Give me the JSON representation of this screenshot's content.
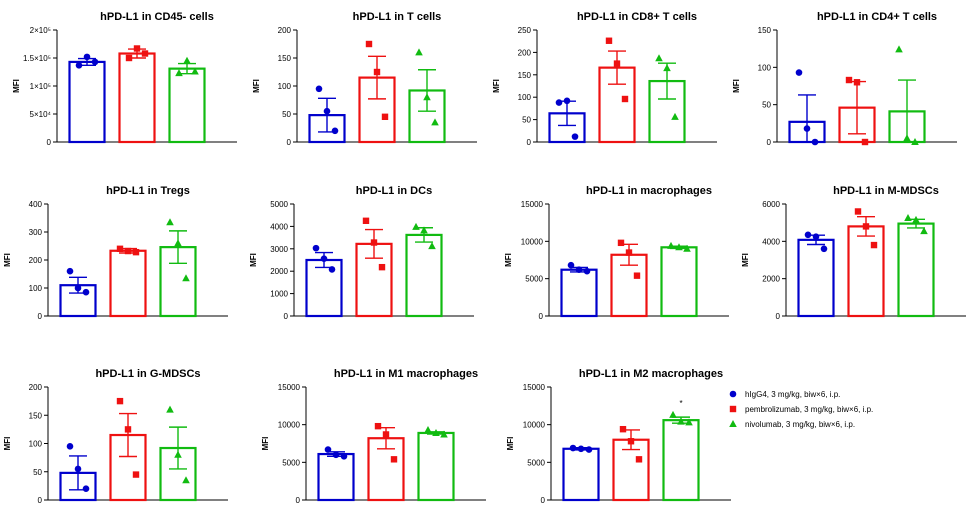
{
  "colors": {
    "hIgG4": "#0000cc",
    "pembrolizumab": "#ee1111",
    "nivolumab": "#11bb11"
  },
  "legend": [
    {
      "key": "hIgG4",
      "label": "hIgG4, 3 mg/kg, biw×6, i.p.",
      "marker": "circle"
    },
    {
      "key": "pembrolizumab",
      "label": "pembrolizumab, 3 mg/kg, biw×6, i.p.",
      "marker": "square"
    },
    {
      "key": "nivolumab",
      "label": "nivolumab, 3 mg/kg, biw×6, i.p.",
      "marker": "triangle"
    }
  ],
  "chart_data": [
    {
      "type": "bar",
      "title": "hPD-L1 in CD45- cells",
      "ylabel": "MFI",
      "ylim": [
        0,
        200000
      ],
      "ticks": [
        0,
        50000,
        100000,
        150000,
        200000
      ],
      "tick_labels": [
        "0",
        "5×10⁴",
        "1×10⁵",
        "1.5×10⁵",
        "2×10⁵"
      ],
      "groups": [
        "hIgG4",
        "pembrolizumab",
        "nivolumab"
      ],
      "means": [
        143000,
        158000,
        131000
      ],
      "sems": [
        6000,
        8000,
        9000
      ],
      "points": [
        [
          137000,
          152000,
          143000
        ],
        [
          150000,
          167000,
          158000
        ],
        [
          123000,
          145000,
          126000
        ]
      ],
      "annotations": [
        "",
        "",
        ""
      ]
    },
    {
      "type": "bar",
      "title": "hPD-L1 in T cells",
      "ylabel": "MFI",
      "ylim": [
        0,
        200
      ],
      "ticks": [
        0,
        50,
        100,
        150,
        200
      ],
      "tick_labels": [
        "0",
        "50",
        "100",
        "150",
        "200"
      ],
      "groups": [
        "hIgG4",
        "pembrolizumab",
        "nivolumab"
      ],
      "means": [
        48,
        115,
        92
      ],
      "sems": [
        30,
        38,
        37
      ],
      "points": [
        [
          95,
          55,
          20
        ],
        [
          175,
          125,
          45
        ],
        [
          160,
          80,
          35
        ]
      ],
      "annotations": [
        "",
        "",
        ""
      ]
    },
    {
      "type": "bar",
      "title": "hPD-L1 in CD8+ T cells",
      "ylabel": "MFI",
      "ylim": [
        0,
        250
      ],
      "ticks": [
        0,
        50,
        100,
        150,
        200,
        250
      ],
      "tick_labels": [
        "0",
        "50",
        "100",
        "150",
        "200",
        "250"
      ],
      "groups": [
        "hIgG4",
        "pembrolizumab",
        "nivolumab"
      ],
      "means": [
        64,
        166,
        136
      ],
      "sems": [
        27,
        37,
        40
      ],
      "points": [
        [
          88,
          92,
          12
        ],
        [
          226,
          175,
          96
        ],
        [
          187,
          165,
          56
        ]
      ],
      "annotations": [
        "",
        "",
        ""
      ]
    },
    {
      "type": "bar",
      "title": "hPD-L1 in CD4+ T cells",
      "ylabel": "MFI",
      "ylim": [
        0,
        150
      ],
      "ticks": [
        0,
        50,
        100,
        150
      ],
      "tick_labels": [
        "0",
        "50",
        "100",
        "150"
      ],
      "groups": [
        "hIgG4",
        "pembrolizumab",
        "nivolumab"
      ],
      "means": [
        27,
        46,
        41
      ],
      "sems": [
        36,
        35,
        42
      ],
      "points": [
        [
          93,
          18,
          0
        ],
        [
          83,
          80,
          0
        ],
        [
          124,
          5,
          0
        ]
      ],
      "annotations": [
        "",
        "",
        ""
      ]
    },
    {
      "type": "bar",
      "title": "hPD-L1 in Tregs",
      "ylabel": "MFI",
      "ylim": [
        0,
        400
      ],
      "ticks": [
        0,
        100,
        200,
        300,
        400
      ],
      "tick_labels": [
        "0",
        "100",
        "200",
        "300",
        "400"
      ],
      "groups": [
        "hIgG4",
        "pembrolizumab",
        "nivolumab"
      ],
      "means": [
        110,
        233,
        246
      ],
      "sems": [
        28,
        8,
        58
      ],
      "points": [
        [
          160,
          100,
          85
        ],
        [
          240,
          232,
          228
        ],
        [
          335,
          260,
          135
        ]
      ],
      "annotations": [
        "",
        "",
        ""
      ]
    },
    {
      "type": "bar",
      "title": "hPD-L1 in DCs",
      "ylabel": "MFI",
      "ylim": [
        0,
        5000
      ],
      "ticks": [
        0,
        1000,
        2000,
        3000,
        4000,
        5000
      ],
      "tick_labels": [
        "0",
        "1000",
        "2000",
        "3000",
        "4000",
        "5000"
      ],
      "groups": [
        "hIgG4",
        "pembrolizumab",
        "nivolumab"
      ],
      "means": [
        2500,
        3220,
        3620
      ],
      "sems": [
        330,
        640,
        320
      ],
      "points": [
        [
          3030,
          2560,
          2080
        ],
        [
          4250,
          3280,
          2180
        ],
        [
          3980,
          3820,
          3120
        ]
      ],
      "annotations": [
        "",
        "",
        ""
      ]
    },
    {
      "type": "bar",
      "title": "hPD-L1 in macrophages",
      "ylabel": "MFI",
      "ylim": [
        0,
        15000
      ],
      "ticks": [
        0,
        5000,
        10000,
        15000
      ],
      "tick_labels": [
        "0",
        "5000",
        "10000",
        "15000"
      ],
      "groups": [
        "hIgG4",
        "pembrolizumab",
        "nivolumab"
      ],
      "means": [
        6200,
        8200,
        9200
      ],
      "sems": [
        300,
        1400,
        150
      ],
      "points": [
        [
          6800,
          6200,
          6000
        ],
        [
          9800,
          8500,
          5400
        ],
        [
          9400,
          9200,
          9000
        ]
      ],
      "annotations": [
        "",
        "",
        ""
      ]
    },
    {
      "type": "bar",
      "title": "hPD-L1 in M-MDSCs",
      "ylabel": "MFI",
      "ylim": [
        0,
        6000
      ],
      "ticks": [
        0,
        2000,
        4000,
        6000
      ],
      "tick_labels": [
        "0",
        "2000",
        "4000",
        "6000"
      ],
      "groups": [
        "hIgG4",
        "pembrolizumab",
        "nivolumab"
      ],
      "means": [
        4080,
        4800,
        4950
      ],
      "sems": [
        250,
        520,
        230
      ],
      "points": [
        [
          4350,
          4250,
          3600
        ],
        [
          5600,
          4800,
          3800
        ],
        [
          5250,
          5150,
          4550
        ]
      ],
      "annotations": [
        "",
        "",
        ""
      ]
    },
    {
      "type": "bar",
      "title": "hPD-L1 in G-MDSCs",
      "ylabel": "MFI",
      "ylim": [
        0,
        200
      ],
      "ticks": [
        0,
        50,
        100,
        150,
        200
      ],
      "tick_labels": [
        "0",
        "50",
        "100",
        "150",
        "200"
      ],
      "groups": [
        "hIgG4",
        "pembrolizumab",
        "nivolumab"
      ],
      "means": [
        48,
        115,
        92
      ],
      "sems": [
        30,
        38,
        37
      ],
      "points": [
        [
          95,
          55,
          20
        ],
        [
          175,
          125,
          45
        ],
        [
          160,
          80,
          35
        ]
      ],
      "annotations": [
        "",
        "",
        ""
      ]
    },
    {
      "type": "bar",
      "title": "hPD-L1 in M1 macrophages",
      "ylabel": "MFI",
      "ylim": [
        0,
        15000
      ],
      "ticks": [
        0,
        5000,
        10000,
        15000
      ],
      "tick_labels": [
        "0",
        "5000",
        "10000",
        "15000"
      ],
      "groups": [
        "hIgG4",
        "pembrolizumab",
        "nivolumab"
      ],
      "means": [
        6100,
        8200,
        8900
      ],
      "sems": [
        300,
        1400,
        150
      ],
      "points": [
        [
          6700,
          6000,
          5800
        ],
        [
          9800,
          8700,
          5400
        ],
        [
          9300,
          8900,
          8700
        ]
      ],
      "annotations": [
        "",
        "",
        ""
      ]
    },
    {
      "type": "bar",
      "title": "hPD-L1 in M2 macrophages",
      "ylabel": "MFI",
      "ylim": [
        0,
        15000
      ],
      "ticks": [
        0,
        5000,
        10000,
        15000
      ],
      "tick_labels": [
        "0",
        "5000",
        "10000",
        "15000"
      ],
      "groups": [
        "hIgG4",
        "pembrolizumab",
        "nivolumab"
      ],
      "means": [
        6800,
        8000,
        10600
      ],
      "sems": [
        150,
        1300,
        400
      ],
      "points": [
        [
          6900,
          6800,
          6700
        ],
        [
          9400,
          7800,
          5400
        ],
        [
          11300,
          10400,
          10300
        ]
      ],
      "annotations": [
        "",
        "",
        "*"
      ]
    }
  ]
}
